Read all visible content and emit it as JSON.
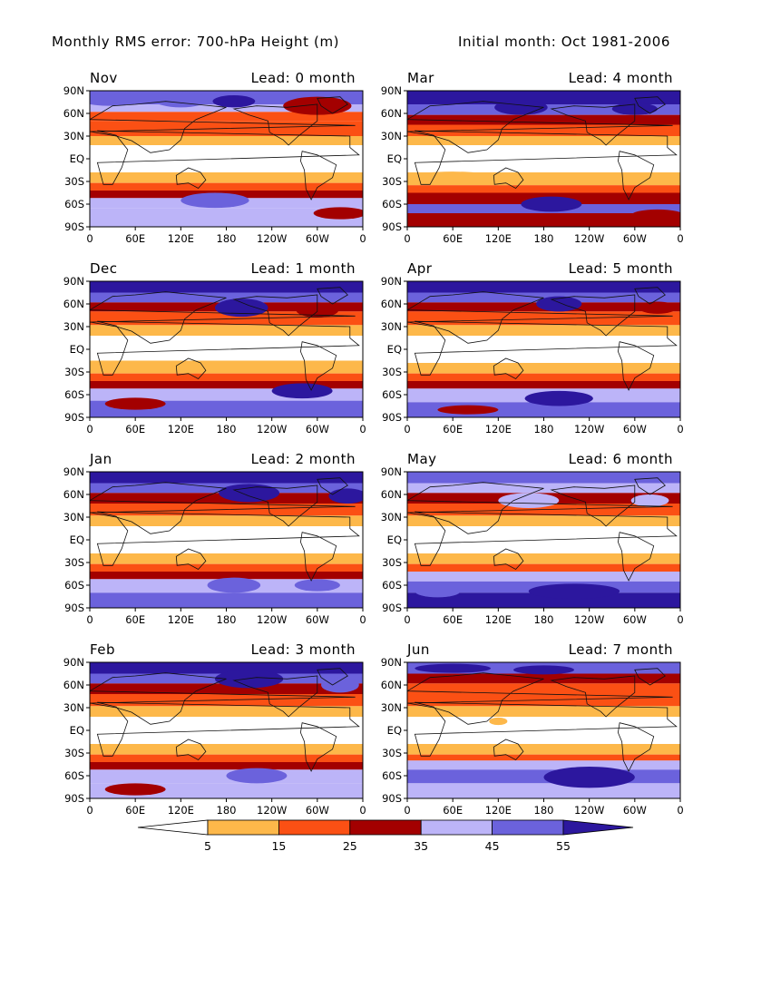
{
  "title": {
    "left": "Monthly RMS error: 700-hPa Height (m)",
    "right": "Initial month: Oct 1981-2006"
  },
  "chart_data": {
    "type": "heatmap",
    "title": "Monthly RMS error: 700-hPa Height (m)",
    "subtitle": "Initial month: Oct 1981-2006",
    "lat_ticks": [
      "90N",
      "60N",
      "30N",
      "EQ",
      "30S",
      "60S",
      "90S"
    ],
    "lon_ticks": [
      "0",
      "60E",
      "120E",
      "180",
      "120W",
      "60W",
      "0"
    ],
    "colorbar": {
      "levels": [
        5,
        15,
        25,
        35,
        45,
        55
      ],
      "colors": [
        "#ffffff",
        "#fdb84a",
        "#fb5014",
        "#a30000",
        "#bcb4f8",
        "#6b62dc",
        "#2c179e"
      ]
    },
    "panels": [
      {
        "month": "Nov",
        "lead": "Lead: 0 month",
        "bands": [
          [
            90,
            72,
            5
          ],
          [
            72,
            62,
            4
          ],
          [
            62,
            50,
            2
          ],
          [
            50,
            30,
            2
          ],
          [
            30,
            18,
            1
          ],
          [
            18,
            -18,
            0
          ],
          [
            -18,
            -32,
            1
          ],
          [
            -32,
            -42,
            2
          ],
          [
            -42,
            -52,
            3
          ],
          [
            -52,
            -65,
            4
          ],
          [
            -65,
            -90,
            4
          ]
        ],
        "blobs": [
          [
            25,
            80,
            40,
            10,
            5
          ],
          [
            120,
            78,
            35,
            10,
            5
          ],
          [
            190,
            76,
            28,
            8,
            6
          ],
          [
            300,
            70,
            45,
            12,
            3
          ],
          [
            165,
            -55,
            45,
            10,
            5
          ],
          [
            330,
            -72,
            35,
            8,
            3
          ]
        ]
      },
      {
        "month": "Mar",
        "lead": "Lead: 4 month",
        "bands": [
          [
            90,
            72,
            6
          ],
          [
            72,
            58,
            5
          ],
          [
            58,
            45,
            3
          ],
          [
            45,
            30,
            2
          ],
          [
            30,
            18,
            1
          ],
          [
            18,
            -18,
            0
          ],
          [
            -18,
            -35,
            1
          ],
          [
            -35,
            -45,
            2
          ],
          [
            -45,
            -60,
            3
          ],
          [
            -60,
            -72,
            5
          ],
          [
            -72,
            -90,
            3
          ]
        ],
        "blobs": [
          [
            150,
            68,
            35,
            10,
            6
          ],
          [
            300,
            66,
            30,
            8,
            6
          ],
          [
            60,
            -25,
            55,
            8,
            1
          ],
          [
            190,
            -60,
            40,
            10,
            6
          ],
          [
            330,
            -75,
            35,
            8,
            3
          ]
        ]
      },
      {
        "month": "Dec",
        "lead": "Lead: 1 month",
        "bands": [
          [
            90,
            75,
            6
          ],
          [
            75,
            62,
            5
          ],
          [
            62,
            50,
            3
          ],
          [
            50,
            32,
            2
          ],
          [
            32,
            18,
            1
          ],
          [
            18,
            -15,
            0
          ],
          [
            -15,
            -32,
            1
          ],
          [
            -32,
            -42,
            2
          ],
          [
            -42,
            -52,
            3
          ],
          [
            -52,
            -68,
            4
          ],
          [
            -68,
            -90,
            5
          ]
        ],
        "blobs": [
          [
            200,
            55,
            35,
            12,
            6
          ],
          [
            300,
            52,
            28,
            10,
            3
          ],
          [
            280,
            -55,
            40,
            10,
            6
          ],
          [
            60,
            -72,
            40,
            8,
            3
          ]
        ]
      },
      {
        "month": "Apr",
        "lead": "Lead: 5 month",
        "bands": [
          [
            90,
            75,
            6
          ],
          [
            75,
            62,
            5
          ],
          [
            62,
            50,
            3
          ],
          [
            50,
            32,
            2
          ],
          [
            32,
            18,
            1
          ],
          [
            18,
            -18,
            0
          ],
          [
            -18,
            -32,
            1
          ],
          [
            -32,
            -42,
            2
          ],
          [
            -42,
            -52,
            3
          ],
          [
            -52,
            -70,
            4
          ],
          [
            -70,
            -90,
            5
          ]
        ],
        "blobs": [
          [
            200,
            60,
            30,
            10,
            6
          ],
          [
            330,
            55,
            25,
            8,
            3
          ],
          [
            200,
            -65,
            45,
            10,
            6
          ],
          [
            80,
            -80,
            40,
            6,
            3
          ]
        ]
      },
      {
        "month": "Jan",
        "lead": "Lead: 2 month",
        "bands": [
          [
            90,
            75,
            6
          ],
          [
            75,
            62,
            5
          ],
          [
            62,
            48,
            3
          ],
          [
            48,
            32,
            2
          ],
          [
            32,
            18,
            1
          ],
          [
            18,
            -18,
            0
          ],
          [
            -18,
            -32,
            1
          ],
          [
            -32,
            -42,
            2
          ],
          [
            -42,
            -52,
            3
          ],
          [
            -52,
            -70,
            4
          ],
          [
            -70,
            -90,
            5
          ]
        ],
        "blobs": [
          [
            210,
            62,
            40,
            12,
            6
          ],
          [
            340,
            58,
            25,
            10,
            6
          ],
          [
            190,
            -60,
            35,
            10,
            5
          ],
          [
            300,
            -60,
            30,
            8,
            5
          ]
        ]
      },
      {
        "month": "May",
        "lead": "Lead: 6 month",
        "bands": [
          [
            90,
            75,
            5
          ],
          [
            75,
            62,
            4
          ],
          [
            62,
            48,
            3
          ],
          [
            48,
            32,
            2
          ],
          [
            32,
            18,
            1
          ],
          [
            18,
            -18,
            0
          ],
          [
            -18,
            -32,
            1
          ],
          [
            -32,
            -42,
            2
          ],
          [
            -42,
            -55,
            4
          ],
          [
            -55,
            -70,
            5
          ],
          [
            -70,
            -90,
            6
          ]
        ],
        "blobs": [
          [
            160,
            52,
            40,
            10,
            4
          ],
          [
            320,
            52,
            25,
            8,
            4
          ],
          [
            220,
            -68,
            60,
            10,
            6
          ],
          [
            40,
            -68,
            30,
            8,
            5
          ]
        ]
      },
      {
        "month": "Feb",
        "lead": "Lead: 3 month",
        "bands": [
          [
            90,
            75,
            6
          ],
          [
            75,
            62,
            5
          ],
          [
            62,
            48,
            3
          ],
          [
            48,
            32,
            2
          ],
          [
            32,
            18,
            1
          ],
          [
            18,
            -18,
            0
          ],
          [
            -18,
            -32,
            1
          ],
          [
            -32,
            -42,
            2
          ],
          [
            -42,
            -52,
            3
          ],
          [
            -52,
            -70,
            4
          ],
          [
            -70,
            -90,
            4
          ]
        ],
        "blobs": [
          [
            210,
            68,
            45,
            12,
            6
          ],
          [
            330,
            60,
            25,
            10,
            5
          ],
          [
            220,
            -60,
            40,
            10,
            5
          ],
          [
            60,
            -78,
            40,
            8,
            3
          ]
        ]
      },
      {
        "month": "Jun",
        "lead": "Lead: 7 month",
        "bands": [
          [
            90,
            75,
            5
          ],
          [
            75,
            62,
            3
          ],
          [
            62,
            48,
            2
          ],
          [
            48,
            32,
            2
          ],
          [
            32,
            18,
            1
          ],
          [
            18,
            -18,
            0
          ],
          [
            -18,
            -32,
            1
          ],
          [
            -32,
            -40,
            2
          ],
          [
            -40,
            -52,
            4
          ],
          [
            -52,
            -70,
            5
          ],
          [
            -70,
            -90,
            4
          ]
        ],
        "blobs": [
          [
            60,
            82,
            50,
            6,
            6
          ],
          [
            180,
            80,
            40,
            6,
            6
          ],
          [
            240,
            -62,
            60,
            14,
            6
          ],
          [
            120,
            12,
            12,
            5,
            1
          ]
        ]
      }
    ]
  }
}
